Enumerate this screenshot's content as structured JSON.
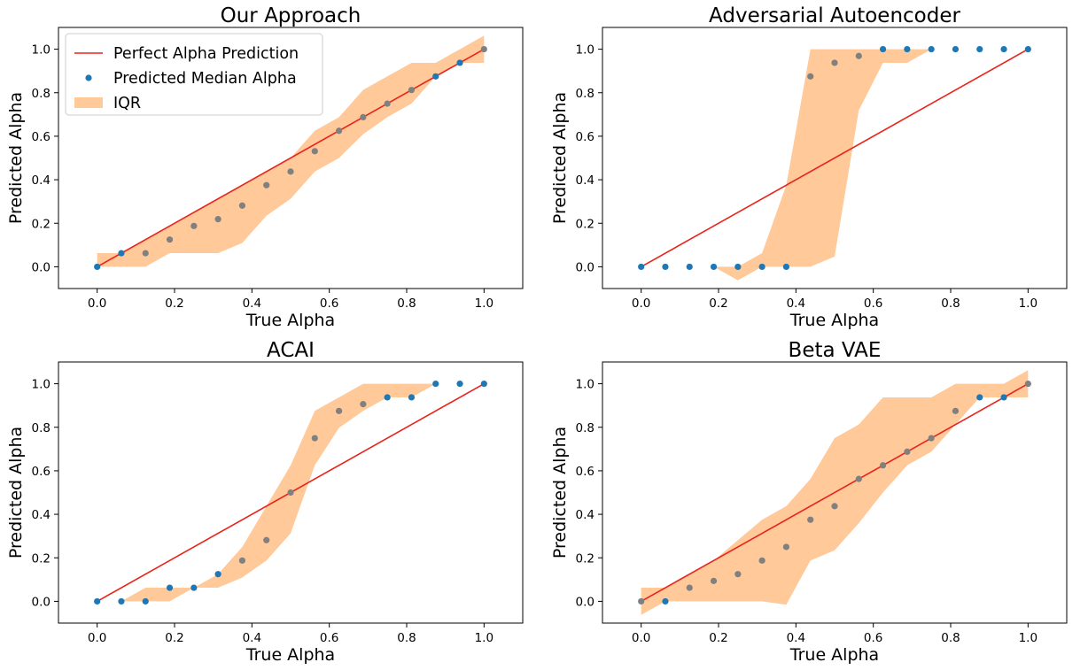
{
  "figure": {
    "colors": {
      "line": "#e8251d",
      "point": "#1f77b4",
      "band": "#ffc999",
      "overlap": "#808080"
    }
  },
  "legend": {
    "entries": [
      "Perfect Alpha Prediction",
      "Predicted Median Alpha",
      "IQR"
    ]
  },
  "chart_data": [
    {
      "type": "scatter",
      "title": "Our Approach",
      "xlabel": "True Alpha",
      "ylabel": "Predicted Alpha",
      "xlim": [
        -0.1,
        1.1
      ],
      "ylim": [
        -0.1,
        1.1
      ],
      "xticks": [
        "0.0",
        "0.2",
        "0.4",
        "0.6",
        "0.8",
        "1.0"
      ],
      "yticks": [
        "0.0",
        "0.2",
        "0.4",
        "0.6",
        "0.8",
        "1.0"
      ],
      "x": [
        0.0,
        0.0625,
        0.125,
        0.1875,
        0.25,
        0.3125,
        0.375,
        0.4375,
        0.5,
        0.5625,
        0.625,
        0.6875,
        0.75,
        0.8125,
        0.875,
        0.9375,
        1.0
      ],
      "median": [
        0.0,
        0.0625,
        0.0625,
        0.125,
        0.1875,
        0.21875,
        0.28125,
        0.375,
        0.4375,
        0.53125,
        0.625,
        0.6875,
        0.75,
        0.8125,
        0.875,
        0.9375,
        1.0
      ],
      "iqr_low": [
        0.0,
        0.0,
        0.0,
        0.0625,
        0.0625,
        0.0625,
        0.109375,
        0.234375,
        0.3125,
        0.4375,
        0.5,
        0.609375,
        0.6875,
        0.75,
        0.875,
        0.9375,
        0.9375
      ],
      "iqr_high": [
        0.0625,
        0.0625,
        0.125,
        0.1875,
        0.25,
        0.3125,
        0.375,
        0.4375,
        0.5,
        0.625,
        0.6875,
        0.8125,
        0.875,
        0.9375,
        0.9375,
        1.0,
        1.0625
      ],
      "legend": true,
      "legend_position": "upper-left"
    },
    {
      "type": "scatter",
      "title": "Adversarial Autoencoder",
      "xlabel": "True Alpha",
      "ylabel": "Predicted Alpha",
      "xlim": [
        -0.1,
        1.1
      ],
      "ylim": [
        -0.1,
        1.1
      ],
      "xticks": [
        "0.0",
        "0.2",
        "0.4",
        "0.6",
        "0.8",
        "1.0"
      ],
      "yticks": [
        "0.0",
        "0.2",
        "0.4",
        "0.6",
        "0.8",
        "1.0"
      ],
      "x": [
        0.0,
        0.0625,
        0.125,
        0.1875,
        0.25,
        0.3125,
        0.375,
        0.4375,
        0.5,
        0.5625,
        0.625,
        0.6875,
        0.75,
        0.8125,
        0.875,
        0.9375,
        1.0
      ],
      "median": [
        0.0,
        0.0,
        0.0,
        0.0,
        0.0,
        0.0,
        0.0,
        0.875,
        0.9375,
        0.96875,
        1.0,
        1.0,
        1.0,
        1.0,
        1.0,
        1.0,
        1.0
      ],
      "iqr_low": [
        0.0,
        0.0,
        0.0,
        0.0,
        -0.0625,
        0.0,
        0.0,
        0.0,
        0.046875,
        0.71875,
        0.9375,
        0.9375,
        1.0,
        1.0,
        1.0,
        1.0,
        1.0
      ],
      "iqr_high": [
        0.0,
        0.0,
        0.0,
        0.0,
        0.0,
        0.0625,
        0.375,
        1.0,
        1.0,
        1.0,
        1.0,
        1.0,
        1.0,
        1.0,
        1.0,
        1.0,
        1.0
      ],
      "legend": false
    },
    {
      "type": "scatter",
      "title": "ACAI",
      "xlabel": "True Alpha",
      "ylabel": "Predicted Alpha",
      "xlim": [
        -0.1,
        1.1
      ],
      "ylim": [
        -0.1,
        1.1
      ],
      "xticks": [
        "0.0",
        "0.2",
        "0.4",
        "0.6",
        "0.8",
        "1.0"
      ],
      "yticks": [
        "0.0",
        "0.2",
        "0.4",
        "0.6",
        "0.8",
        "1.0"
      ],
      "x": [
        0.0,
        0.0625,
        0.125,
        0.1875,
        0.25,
        0.3125,
        0.375,
        0.4375,
        0.5,
        0.5625,
        0.625,
        0.6875,
        0.75,
        0.8125,
        0.875,
        0.9375,
        1.0
      ],
      "median": [
        0.0,
        0.0,
        0.0,
        0.0625,
        0.0625,
        0.125,
        0.1875,
        0.28125,
        0.5,
        0.75,
        0.875,
        0.90625,
        0.9375,
        0.9375,
        1.0,
        1.0,
        1.0
      ],
      "iqr_low": [
        0.0,
        0.0,
        0.0,
        0.0,
        0.0625,
        0.0625,
        0.109375,
        0.1875,
        0.3125,
        0.625,
        0.796875,
        0.875,
        0.9375,
        0.9375,
        1.0,
        1.0,
        1.0
      ],
      "iqr_high": [
        0.0,
        0.0,
        0.0625,
        0.0625,
        0.0625,
        0.125,
        0.25,
        0.4375,
        0.625,
        0.875,
        0.9375,
        1.0,
        1.0,
        1.0,
        1.0,
        1.0,
        1.0
      ],
      "legend": false
    },
    {
      "type": "scatter",
      "title": "Beta VAE",
      "xlabel": "True Alpha",
      "ylabel": "Predicted Alpha",
      "xlim": [
        -0.1,
        1.1
      ],
      "ylim": [
        -0.1,
        1.1
      ],
      "xticks": [
        "0.0",
        "0.2",
        "0.4",
        "0.6",
        "0.8",
        "1.0"
      ],
      "yticks": [
        "0.0",
        "0.2",
        "0.4",
        "0.6",
        "0.8",
        "1.0"
      ],
      "x": [
        0.0,
        0.0625,
        0.125,
        0.1875,
        0.25,
        0.3125,
        0.375,
        0.4375,
        0.5,
        0.5625,
        0.625,
        0.6875,
        0.75,
        0.8125,
        0.875,
        0.9375,
        1.0
      ],
      "median": [
        0.0,
        0.0,
        0.0625,
        0.09375,
        0.125,
        0.1875,
        0.25,
        0.375,
        0.4375,
        0.5625,
        0.625,
        0.6875,
        0.75,
        0.875,
        0.9375,
        0.9375,
        1.0
      ],
      "iqr_low": [
        -0.0625,
        0.0,
        0.0,
        0.0,
        0.0,
        0.0,
        -0.015625,
        0.1875,
        0.234375,
        0.359375,
        0.5,
        0.625,
        0.6875,
        0.8125,
        0.9375,
        0.9375,
        0.9375
      ],
      "iqr_high": [
        0.0625,
        0.0625,
        0.125,
        0.1875,
        0.28125,
        0.375,
        0.4375,
        0.5625,
        0.75,
        0.8125,
        0.9375,
        0.9375,
        0.9375,
        1.0,
        1.0,
        1.0,
        1.0625
      ],
      "legend": false
    }
  ]
}
